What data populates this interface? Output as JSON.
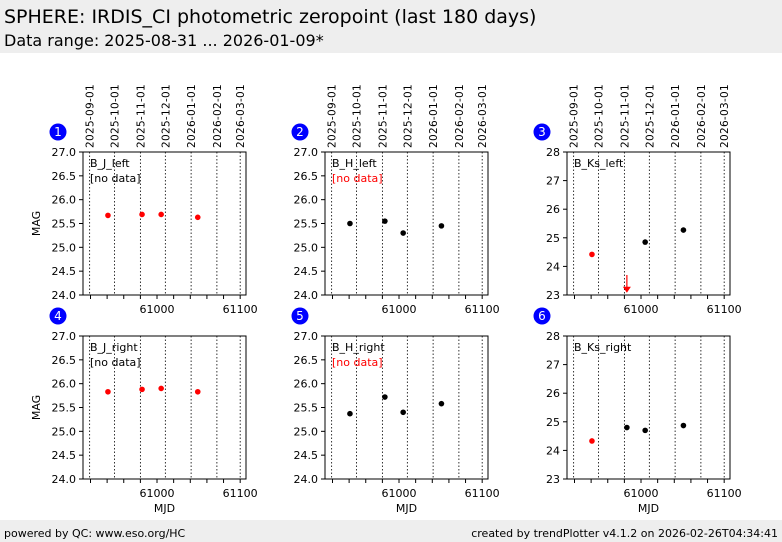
{
  "header": {
    "title": "SPHERE: IRDIS_CI photometric zeropoint (last 180 days)",
    "subtitle": "Data range: 2025-08-31 ... 2026-01-09*"
  },
  "footer": {
    "left": "powered by QC: www.eso.org/HC",
    "right": "created by trendPlotter v4.1.2 on 2026-02-26T04:34:41"
  },
  "colors": {
    "badge": "#0000ff",
    "flagged": "#ff0000",
    "ok": "#000000"
  },
  "chart_data": {
    "type": "scatter",
    "xlabel": "MJD",
    "ylabel": "MAG",
    "xlim": [
      60911,
      61107
    ],
    "xticks": [
      61000,
      61100
    ],
    "date_ticks": [
      {
        "label": "2025-09-01",
        "mjd": 60919
      },
      {
        "label": "2025-10-01",
        "mjd": 60949
      },
      {
        "label": "2025-11-01",
        "mjd": 60980
      },
      {
        "label": "2025-12-01",
        "mjd": 61010
      },
      {
        "label": "2026-01-01",
        "mjd": 61041
      },
      {
        "label": "2026-02-01",
        "mjd": 61072
      },
      {
        "label": "2026-03-01",
        "mjd": 61100
      }
    ],
    "panels": [
      {
        "id": "1",
        "name": "B_J_left",
        "note": "[no data]",
        "note_color": "#000000",
        "ylim": [
          24,
          27
        ],
        "yticks": [
          "24.0",
          "24.5",
          "25.0",
          "25.5",
          "26.0",
          "26.5",
          "27.0"
        ],
        "points": [
          {
            "x": 60941,
            "y": 25.67,
            "c": "red"
          },
          {
            "x": 60982,
            "y": 25.69,
            "c": "red"
          },
          {
            "x": 61005,
            "y": 25.69,
            "c": "red"
          },
          {
            "x": 61049,
            "y": 25.63,
            "c": "red"
          }
        ]
      },
      {
        "id": "2",
        "name": "B_H_left",
        "note": "[no data]",
        "note_color": "#ff0000",
        "ylim": [
          24,
          27
        ],
        "yticks": [
          "24.0",
          "24.5",
          "25.0",
          "25.5",
          "26.0",
          "26.5",
          "27.0"
        ],
        "points": [
          {
            "x": 60941,
            "y": 25.5,
            "c": "black"
          },
          {
            "x": 60983,
            "y": 25.55,
            "c": "black"
          },
          {
            "x": 61005,
            "y": 25.3,
            "c": "black"
          },
          {
            "x": 61051,
            "y": 25.45,
            "c": "black"
          }
        ]
      },
      {
        "id": "3",
        "name": "B_Ks_left",
        "note": "",
        "note_color": "#000000",
        "ylim": [
          23,
          28
        ],
        "yticks": [
          "23",
          "24",
          "25",
          "26",
          "27",
          "28"
        ],
        "points": [
          {
            "x": 60941,
            "y": 24.42,
            "c": "red"
          },
          {
            "x": 61005,
            "y": 24.85,
            "c": "black"
          },
          {
            "x": 61051,
            "y": 25.27,
            "c": "black"
          }
        ],
        "limits": [
          {
            "x": 60983,
            "y": 23.15,
            "from": 23.7
          }
        ]
      },
      {
        "id": "4",
        "name": "B_J_right",
        "note": "[no data]",
        "note_color": "#000000",
        "ylim": [
          24,
          27
        ],
        "yticks": [
          "24.0",
          "24.5",
          "25.0",
          "25.5",
          "26.0",
          "26.5",
          "27.0"
        ],
        "points": [
          {
            "x": 60941,
            "y": 25.83,
            "c": "red"
          },
          {
            "x": 60982,
            "y": 25.88,
            "c": "red"
          },
          {
            "x": 61005,
            "y": 25.9,
            "c": "red"
          },
          {
            "x": 61049,
            "y": 25.83,
            "c": "red"
          }
        ]
      },
      {
        "id": "5",
        "name": "B_H_right",
        "note": "[no data]",
        "note_color": "#ff0000",
        "ylim": [
          24,
          27
        ],
        "yticks": [
          "24.0",
          "24.5",
          "25.0",
          "25.5",
          "26.0",
          "26.5",
          "27.0"
        ],
        "points": [
          {
            "x": 60941,
            "y": 25.37,
            "c": "black"
          },
          {
            "x": 60983,
            "y": 25.72,
            "c": "black"
          },
          {
            "x": 61005,
            "y": 25.4,
            "c": "black"
          },
          {
            "x": 61051,
            "y": 25.58,
            "c": "black"
          }
        ]
      },
      {
        "id": "6",
        "name": "B_Ks_right",
        "note": "",
        "note_color": "#000000",
        "ylim": [
          23,
          28
        ],
        "yticks": [
          "23",
          "24",
          "25",
          "26",
          "27",
          "28"
        ],
        "points": [
          {
            "x": 60941,
            "y": 24.33,
            "c": "red"
          },
          {
            "x": 60983,
            "y": 24.8,
            "c": "black"
          },
          {
            "x": 61005,
            "y": 24.7,
            "c": "black"
          },
          {
            "x": 61051,
            "y": 24.87,
            "c": "black"
          }
        ]
      }
    ]
  }
}
